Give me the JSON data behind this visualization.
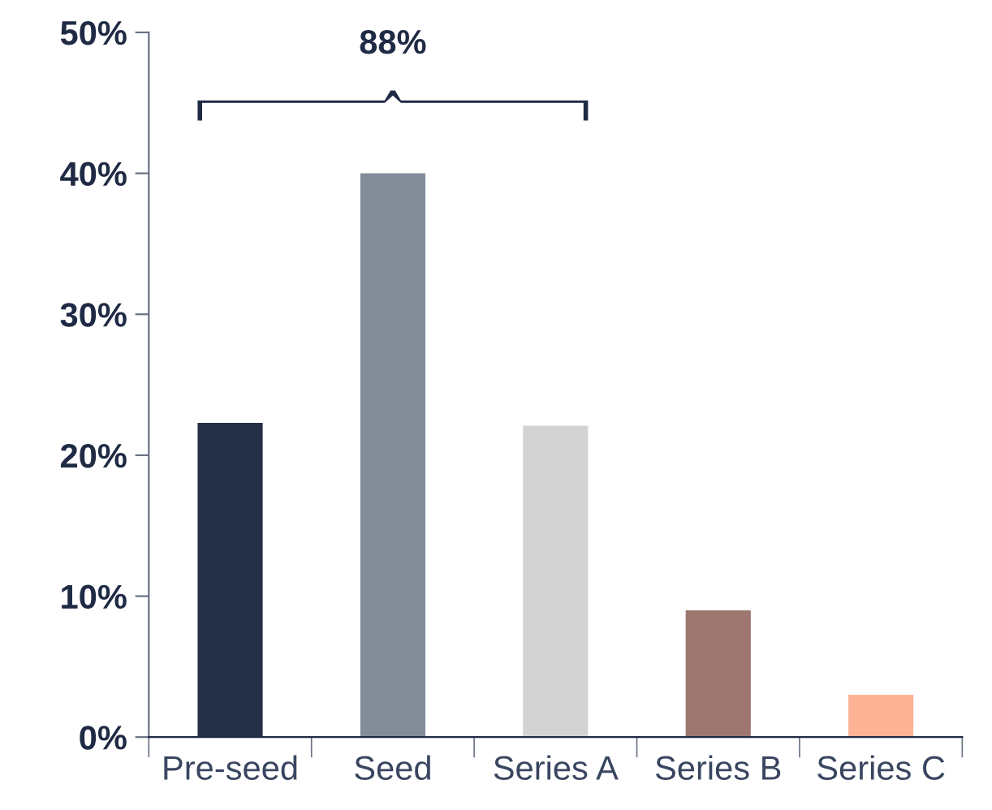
{
  "chart_data": {
    "type": "bar",
    "categories": [
      "Pre-seed",
      "Seed",
      "Series A",
      "Series B",
      "Series C"
    ],
    "values": [
      22.3,
      40,
      22.1,
      9.0,
      3.0
    ],
    "colors": [
      "#252f47",
      "#838c99",
      "#d3d3d3",
      "#9c766f",
      "#ffb396"
    ],
    "ylim": [
      0,
      50
    ],
    "yticks": [
      {
        "value": 0,
        "label": "0%"
      },
      {
        "value": 10,
        "label": "10%"
      },
      {
        "value": 20,
        "label": "20%"
      },
      {
        "value": 30,
        "label": "30%"
      },
      {
        "value": 40,
        "label": "40%"
      },
      {
        "value": 50,
        "label": "50%"
      }
    ],
    "annotations": [
      "88%"
    ],
    "grid": false,
    "legend": false
  }
}
